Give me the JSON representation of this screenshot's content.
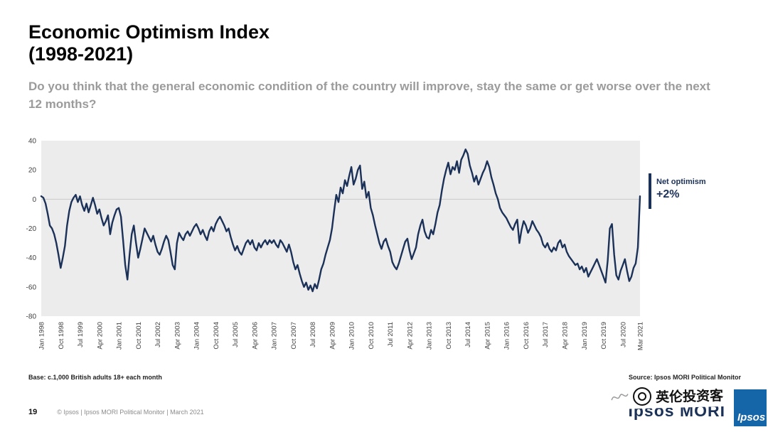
{
  "slide": {
    "title_line1": "Economic Optimism Index",
    "title_line2": "(1998-2021)",
    "subtitle": "Do you think that the general economic condition of the country will improve, stay the same or get worse over the next 12 months?",
    "base_note": "Base: c.1,000 British adults 18+ each month",
    "source_label": "Source:",
    "source_text": "Ipsos MORI Political Monitor",
    "page_number": "19",
    "footer_text": "© Ipsos | Ipsos MORI Political Monitor | March 2021",
    "brand": "Ipsos MORI",
    "logo_text": "Ipsos",
    "watermark_text": "英伦投资客"
  },
  "colors": {
    "line": "#1b3158",
    "navy": "#1b3158",
    "plot_bg": "#ececec",
    "zero_line": "#c9c9c9",
    "subtitle_gray": "#9b9b9b",
    "ipsos_blue": "#1565a9"
  },
  "chart_data": {
    "type": "line",
    "title": "Economic Optimism Index (1998-2021)",
    "question": "Do you think that the general economic condition of the country will improve, stay the same or get worse over the next 12 months?",
    "frequency": "monthly",
    "x_start": "Jan 1998",
    "x_end": "Mar 2021",
    "ylim": [
      -80,
      40
    ],
    "y_ticks": [
      40,
      20,
      0,
      -20,
      -40,
      -60,
      -80
    ],
    "grid": "zero-line only",
    "x_tick_labels": [
      "Jan 1998",
      "Oct 1998",
      "Jul 1999",
      "Apr 2000",
      "Jan 2001",
      "Oct 2001",
      "Jul 2002",
      "Apr 2003",
      "Jan 2004",
      "Oct 2004",
      "Jul 2005",
      "Apr 2006",
      "Jan 2007",
      "Oct 2007",
      "Jul 2008",
      "Apr 2009",
      "Jan 2010",
      "Oct 2010",
      "Jul 2011",
      "Apr 2012",
      "Jan 2013",
      "Oct 2013",
      "Jul 2014",
      "Apr 2015",
      "Jan 2016",
      "Oct 2016",
      "Jul 2017",
      "Apr 2018",
      "Jan 2019",
      "Oct 2019",
      "Jul 2020",
      "Mar 2021"
    ],
    "x_tick_month_indices": [
      0,
      9,
      18,
      27,
      36,
      45,
      54,
      63,
      72,
      81,
      90,
      99,
      108,
      117,
      126,
      135,
      144,
      153,
      162,
      171,
      180,
      189,
      198,
      207,
      216,
      225,
      234,
      243,
      252,
      261,
      270,
      278
    ],
    "annotation": {
      "label": "Net optimism",
      "value": "+2%"
    },
    "series": [
      {
        "name": "Net economic optimism",
        "values": [
          2,
          1,
          -3,
          -10,
          -18,
          -20,
          -24,
          -30,
          -38,
          -47,
          -40,
          -32,
          -18,
          -8,
          -2,
          1,
          3,
          -2,
          2,
          -4,
          -8,
          -3,
          -9,
          -4,
          1,
          -4,
          -10,
          -7,
          -13,
          -18,
          -15,
          -11,
          -24,
          -16,
          -11,
          -7,
          -6,
          -12,
          -28,
          -45,
          -55,
          -38,
          -24,
          -18,
          -30,
          -40,
          -34,
          -27,
          -20,
          -23,
          -26,
          -29,
          -25,
          -31,
          -36,
          -38,
          -34,
          -29,
          -25,
          -28,
          -36,
          -45,
          -48,
          -30,
          -23,
          -26,
          -28,
          -24,
          -22,
          -25,
          -22,
          -19,
          -17,
          -20,
          -24,
          -21,
          -25,
          -28,
          -22,
          -19,
          -22,
          -17,
          -14,
          -12,
          -15,
          -18,
          -22,
          -20,
          -26,
          -31,
          -35,
          -32,
          -36,
          -38,
          -34,
          -30,
          -28,
          -31,
          -28,
          -33,
          -35,
          -30,
          -33,
          -30,
          -28,
          -31,
          -28,
          -30,
          -28,
          -31,
          -33,
          -28,
          -30,
          -33,
          -36,
          -31,
          -36,
          -43,
          -48,
          -45,
          -51,
          -56,
          -60,
          -57,
          -62,
          -59,
          -63,
          -58,
          -61,
          -55,
          -48,
          -44,
          -38,
          -33,
          -28,
          -20,
          -8,
          3,
          -2,
          8,
          4,
          13,
          9,
          16,
          22,
          10,
          14,
          20,
          23,
          7,
          12,
          1,
          5,
          -6,
          -11,
          -18,
          -24,
          -30,
          -34,
          -29,
          -27,
          -32,
          -36,
          -43,
          -46,
          -48,
          -44,
          -39,
          -34,
          -29,
          -27,
          -35,
          -41,
          -37,
          -33,
          -24,
          -18,
          -14,
          -22,
          -26,
          -27,
          -21,
          -24,
          -17,
          -9,
          -4,
          6,
          14,
          20,
          25,
          17,
          22,
          20,
          26,
          18,
          27,
          30,
          34,
          31,
          23,
          18,
          12,
          16,
          10,
          14,
          18,
          21,
          26,
          22,
          15,
          10,
          4,
          0,
          -6,
          -9,
          -11,
          -13,
          -16,
          -19,
          -21,
          -17,
          -14,
          -30,
          -21,
          -15,
          -18,
          -23,
          -20,
          -15,
          -18,
          -21,
          -23,
          -26,
          -31,
          -33,
          -30,
          -34,
          -36,
          -33,
          -35,
          -30,
          -28,
          -33,
          -31,
          -36,
          -39,
          -41,
          -43,
          -45,
          -44,
          -48,
          -46,
          -50,
          -47,
          -53,
          -50,
          -47,
          -44,
          -41,
          -45,
          -49,
          -53,
          -57,
          -42,
          -20,
          -17,
          -38,
          -52,
          -55,
          -49,
          -45,
          -41,
          -49,
          -56,
          -53,
          -47,
          -44,
          -33,
          2
        ]
      }
    ]
  }
}
